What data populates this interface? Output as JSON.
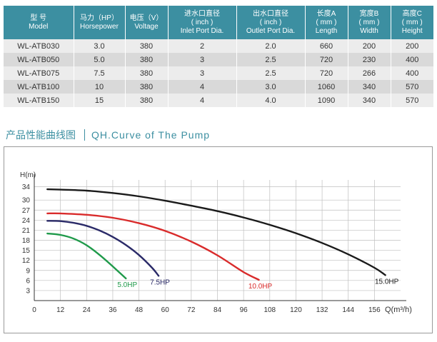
{
  "table": {
    "headers": [
      {
        "cn": "型 号",
        "en": "Model"
      },
      {
        "cn": "马力（HP）",
        "en": "Horsepower"
      },
      {
        "cn": "电压（V）",
        "en": "Voltage"
      },
      {
        "cn": "进水口直径",
        "sub": "( inch )",
        "en": "Inlet Port Dia."
      },
      {
        "cn": "出水口直径",
        "sub": "( inch )",
        "en": "Outlet Port Dia."
      },
      {
        "cn": "长度A",
        "sub": "( mm )",
        "en": "Length"
      },
      {
        "cn": "宽度B",
        "sub": "( mm )",
        "en": "Width"
      },
      {
        "cn": "高度C",
        "sub": "( mm )",
        "en": "Height"
      }
    ],
    "rows": [
      [
        "WL-ATB030",
        "3.0",
        "380",
        "2",
        "2.0",
        "660",
        "200",
        "200"
      ],
      [
        "WL-ATB050",
        "5.0",
        "380",
        "3",
        "2.5",
        "720",
        "230",
        "400"
      ],
      [
        "WL-ATB075",
        "7.5",
        "380",
        "3",
        "2.5",
        "720",
        "266",
        "400"
      ],
      [
        "WL-ATB100",
        "10",
        "380",
        "4",
        "3.0",
        "1060",
        "340",
        "570"
      ],
      [
        "WL-ATB150",
        "15",
        "380",
        "4",
        "4.0",
        "1090",
        "340",
        "570"
      ]
    ]
  },
  "section": {
    "title_cn": "产品性能曲线图",
    "title_en": "QH.Curve of The Pump"
  },
  "colors": {
    "header_bg": "#3c8fa1",
    "title_color": "#3c8fa1"
  },
  "chart_data": {
    "type": "line",
    "xlabel": "Q(m³/h)",
    "ylabel": "H(m)",
    "xlim": [
      0,
      168
    ],
    "ylim": [
      0,
      36
    ],
    "xticks": [
      0,
      12,
      24,
      36,
      48,
      60,
      72,
      84,
      96,
      108,
      120,
      132,
      144,
      156
    ],
    "yticks": [
      3,
      6,
      9,
      12,
      15,
      18,
      21,
      24,
      27,
      30,
      34
    ],
    "grid": true,
    "series": [
      {
        "name": "5.0HP",
        "color": "#1f9a4a",
        "x": [
          6,
          12,
          18,
          24,
          30,
          36,
          42
        ],
        "y": [
          20.0,
          19.6,
          18.5,
          16.5,
          13.6,
          10.2,
          6.6
        ]
      },
      {
        "name": "7.5HP",
        "color": "#2a2a68",
        "x": [
          6,
          12,
          18,
          24,
          30,
          36,
          42,
          48,
          54,
          57
        ],
        "y": [
          23.8,
          23.7,
          23.2,
          22.3,
          20.9,
          19.0,
          16.6,
          13.6,
          9.8,
          7.4
        ]
      },
      {
        "name": "10.0HP",
        "color": "#d92b2b",
        "x": [
          6,
          12,
          24,
          36,
          48,
          60,
          72,
          84,
          96,
          103
        ],
        "y": [
          26.0,
          26.0,
          25.6,
          24.7,
          23.1,
          20.8,
          17.6,
          13.5,
          8.5,
          6.2
        ]
      },
      {
        "name": "15.0HP",
        "color": "#1a1a1a",
        "x": [
          6,
          12,
          24,
          36,
          48,
          60,
          72,
          84,
          96,
          108,
          120,
          132,
          144,
          156,
          161
        ],
        "y": [
          33.2,
          33.1,
          32.8,
          32.1,
          31.1,
          29.8,
          28.3,
          26.7,
          24.8,
          22.6,
          20.1,
          17.2,
          13.8,
          9.8,
          7.6
        ]
      }
    ]
  }
}
